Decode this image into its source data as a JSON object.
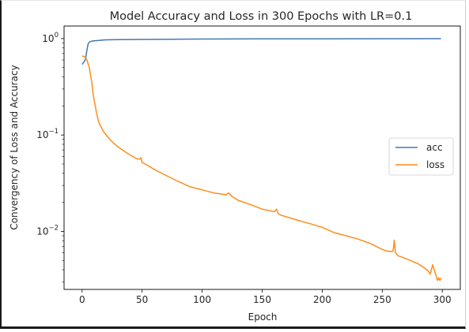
{
  "chart_data": {
    "type": "line",
    "title": "Model Accuracy and Loss in 300 Epochs with LR=0.1",
    "xlabel": "Epoch",
    "ylabel": "Convergency of Loss and Accuracy",
    "yscale": "log",
    "xlim": [
      -15,
      315
    ],
    "ylim": [
      0.0025,
      1.35
    ],
    "x_ticks": [
      0,
      50,
      100,
      150,
      200,
      250,
      300
    ],
    "y_ticks": [
      {
        "value": 1,
        "base": "10",
        "exp": "0"
      },
      {
        "value": 0.1,
        "base": "10",
        "exp": "−1"
      },
      {
        "value": 0.01,
        "base": "10",
        "exp": "−2"
      }
    ],
    "grid": false,
    "legend_position": "center-right",
    "series": [
      {
        "name": "acc",
        "color": "#4477b0",
        "x": [
          0,
          1,
          2,
          3,
          4,
          5,
          6,
          8,
          10,
          15,
          20,
          30,
          50,
          75,
          100,
          150,
          200,
          250,
          299
        ],
        "y": [
          0.54,
          0.56,
          0.58,
          0.62,
          0.75,
          0.88,
          0.92,
          0.94,
          0.95,
          0.96,
          0.97,
          0.975,
          0.98,
          0.985,
          0.99,
          0.995,
          0.995,
          0.997,
          0.998
        ]
      },
      {
        "name": "loss",
        "color": "#ff8c1a",
        "x": [
          0,
          2,
          4,
          6,
          8,
          9,
          10,
          11,
          12,
          13,
          14,
          16,
          18,
          20,
          25,
          30,
          35,
          40,
          45,
          48,
          49,
          50,
          55,
          60,
          70,
          80,
          90,
          100,
          110,
          120,
          122,
          125,
          130,
          140,
          150,
          160,
          162,
          163,
          165,
          170,
          180,
          190,
          200,
          210,
          220,
          230,
          240,
          250,
          255,
          259,
          260,
          261,
          263,
          270,
          280,
          285,
          288,
          290,
          292,
          295,
          296,
          297,
          298,
          299
        ],
        "y": [
          0.66,
          0.65,
          0.6,
          0.5,
          0.36,
          0.28,
          0.23,
          0.2,
          0.17,
          0.15,
          0.135,
          0.12,
          0.108,
          0.1,
          0.085,
          0.075,
          0.068,
          0.062,
          0.057,
          0.056,
          0.058,
          0.052,
          0.048,
          0.044,
          0.038,
          0.033,
          0.029,
          0.027,
          0.025,
          0.024,
          0.025,
          0.023,
          0.021,
          0.019,
          0.017,
          0.016,
          0.017,
          0.0155,
          0.0148,
          0.0142,
          0.013,
          0.012,
          0.011,
          0.0097,
          0.009,
          0.0083,
          0.0075,
          0.0065,
          0.0062,
          0.0062,
          0.0081,
          0.006,
          0.0056,
          0.0052,
          0.0046,
          0.0042,
          0.0039,
          0.0036,
          0.0045,
          0.0034,
          0.0031,
          0.0033,
          0.0031,
          0.0033
        ]
      }
    ]
  }
}
